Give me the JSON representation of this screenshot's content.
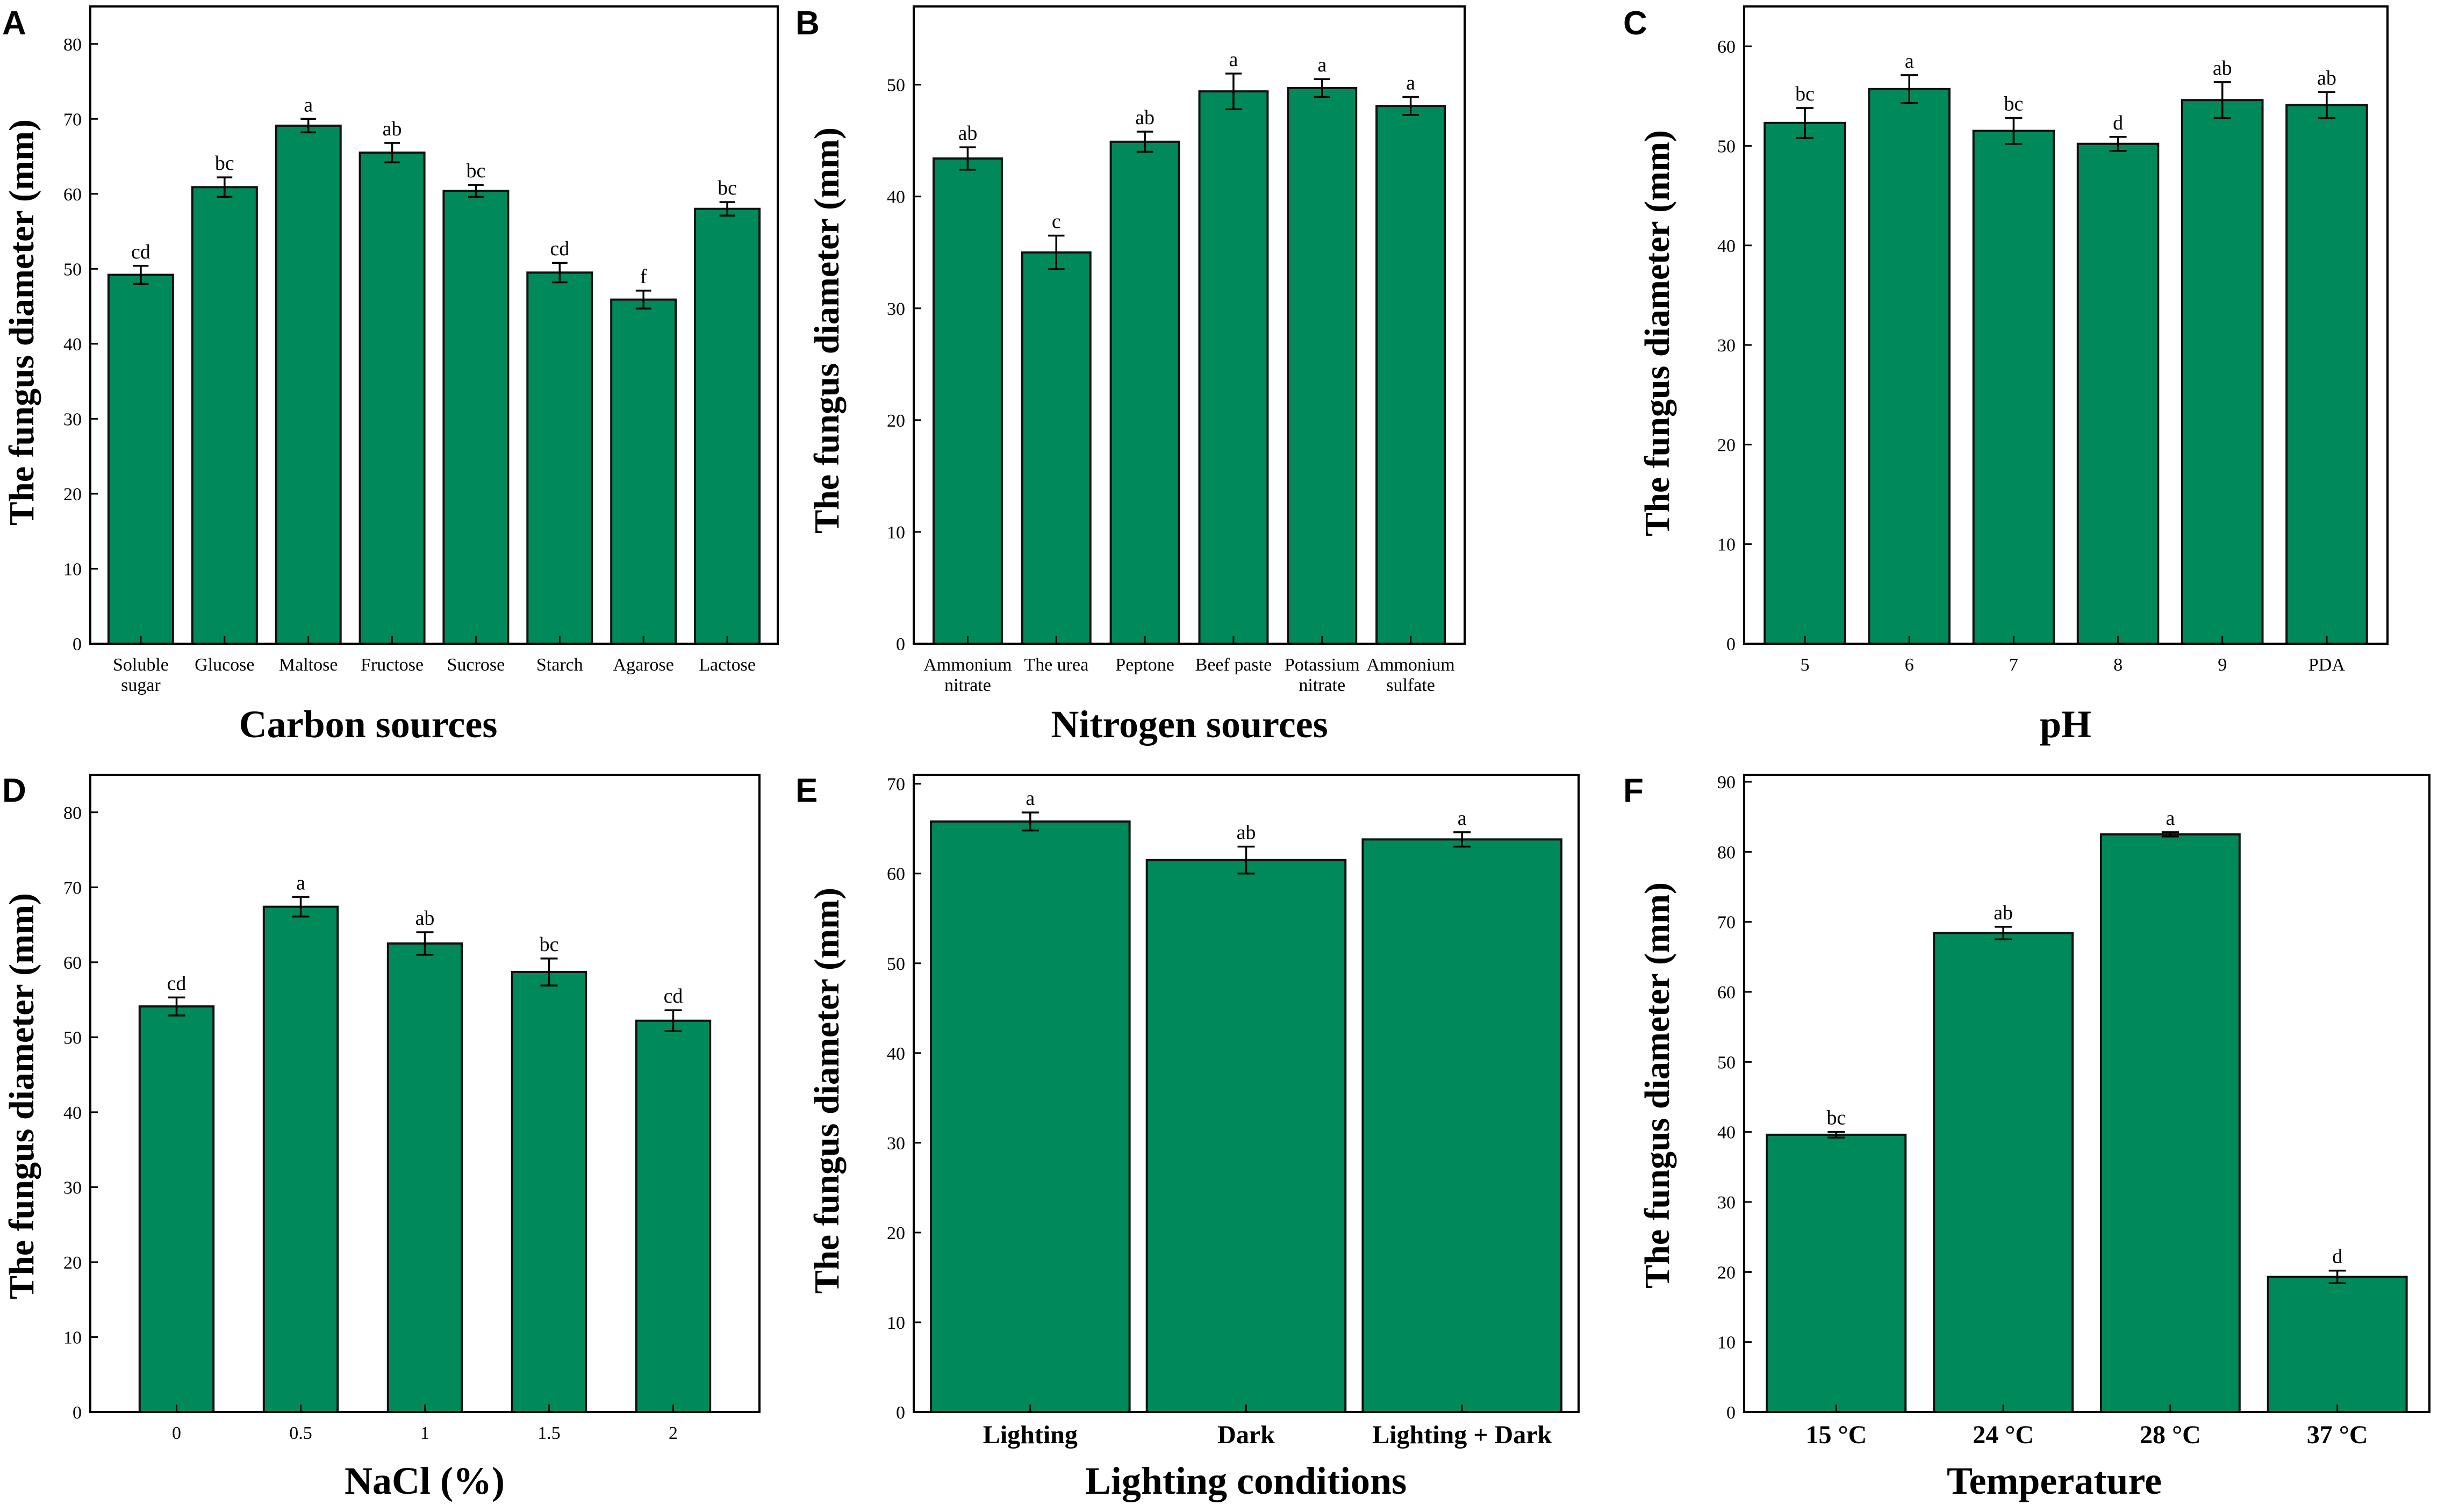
{
  "colors": {
    "bar": "#008a5c",
    "bar_edge": "#111111",
    "axis": "#000000",
    "background": "#ffffff"
  },
  "chart_data": [
    {
      "panel": "A",
      "type": "bar",
      "ylabel": "The fungus diameter (mm)",
      "xlabel": "Carbon sources",
      "ylim": [
        0,
        85
      ],
      "yticks": [
        0,
        10,
        20,
        30,
        40,
        50,
        60,
        70,
        80
      ],
      "categories": [
        [
          "Soluble",
          "sugar"
        ],
        [
          "Glucose"
        ],
        [
          "Maltose"
        ],
        [
          "Fructose"
        ],
        [
          "Sucrose"
        ],
        [
          "Starch"
        ],
        [
          "Agarose"
        ],
        [
          "Lactose"
        ]
      ],
      "values": [
        49.2,
        60.9,
        69.1,
        65.5,
        60.4,
        49.5,
        45.9,
        58.0
      ],
      "errors": [
        1.2,
        1.3,
        0.9,
        1.3,
        0.8,
        1.3,
        1.2,
        0.9
      ],
      "significance": [
        "cd",
        "bc",
        "a",
        "ab",
        "bc",
        "cd",
        "f",
        "bc"
      ]
    },
    {
      "panel": "B",
      "type": "bar",
      "ylabel": "The fungus diameter (mm)",
      "xlabel": "Nitrogen sources",
      "ylim": [
        0,
        57
      ],
      "yticks": [
        0,
        10,
        20,
        30,
        40,
        50
      ],
      "categories": [
        [
          "Ammonium",
          "nitrate"
        ],
        [
          "The urea"
        ],
        [
          "Peptone"
        ],
        [
          "Beef paste"
        ],
        [
          "Potassium",
          "nitrate"
        ],
        [
          "Ammonium",
          "sulfate"
        ]
      ],
      "values": [
        43.4,
        35.0,
        44.9,
        49.4,
        49.7,
        48.1
      ],
      "errors": [
        1.0,
        1.5,
        0.9,
        1.6,
        0.8,
        0.8
      ],
      "significance": [
        "ab",
        "c",
        "ab",
        "a",
        "a",
        "a"
      ]
    },
    {
      "panel": "C",
      "type": "bar",
      "ylabel": "The fungus diameter (mm)",
      "xlabel": "pH",
      "ylim": [
        0,
        64
      ],
      "yticks": [
        0,
        10,
        20,
        30,
        40,
        50,
        60
      ],
      "categories": [
        [
          "5"
        ],
        [
          "6"
        ],
        [
          "7"
        ],
        [
          "8"
        ],
        [
          "9"
        ],
        [
          "PDA"
        ]
      ],
      "values": [
        52.3,
        55.7,
        51.5,
        50.2,
        54.6,
        54.1
      ],
      "errors": [
        1.5,
        1.4,
        1.3,
        0.7,
        1.8,
        1.3
      ],
      "significance": [
        "bc",
        "a",
        "bc",
        "d",
        "ab",
        "ab"
      ]
    },
    {
      "panel": "D",
      "type": "bar",
      "ylabel": "The fungus diameter (mm)",
      "xlabel": "NaCl (%)",
      "ylim": [
        0,
        85
      ],
      "yticks": [
        0,
        10,
        20,
        30,
        40,
        50,
        60,
        70,
        80
      ],
      "categories": [
        [
          "0"
        ],
        [
          "0.5"
        ],
        [
          "1"
        ],
        [
          "1.5"
        ],
        [
          "2"
        ]
      ],
      "values": [
        54.1,
        67.4,
        62.5,
        58.7,
        52.2
      ],
      "errors": [
        1.2,
        1.3,
        1.5,
        1.8,
        1.4
      ],
      "significance": [
        "cd",
        "a",
        "ab",
        "bc",
        "cd"
      ]
    },
    {
      "panel": "E",
      "type": "bar",
      "ylabel": "The fungus diameter (mm)",
      "xlabel": "Lighting conditions",
      "ylim": [
        0,
        71
      ],
      "yticks": [
        0,
        10,
        20,
        30,
        40,
        50,
        60,
        70
      ],
      "categories": [
        [
          "Lighting"
        ],
        [
          "Dark"
        ],
        [
          "Lighting + Dark"
        ]
      ],
      "values": [
        65.8,
        61.5,
        63.8
      ],
      "errors": [
        1.0,
        1.5,
        0.8
      ],
      "significance": [
        "a",
        "ab",
        "a"
      ]
    },
    {
      "panel": "F",
      "type": "bar",
      "ylabel": "The fungus diameter (mm)",
      "xlabel": "Temperature",
      "ylim": [
        0,
        91
      ],
      "yticks": [
        0,
        10,
        20,
        30,
        40,
        50,
        60,
        70,
        80,
        90
      ],
      "categories": [
        [
          "15 °C"
        ],
        [
          "24 °C"
        ],
        [
          "28 °C"
        ],
        [
          "37 °C"
        ]
      ],
      "values": [
        39.6,
        68.4,
        82.5,
        19.3
      ],
      "errors": [
        0.4,
        0.9,
        0.3,
        0.9
      ],
      "significance": [
        "bc",
        "ab",
        "a",
        "d"
      ]
    }
  ]
}
